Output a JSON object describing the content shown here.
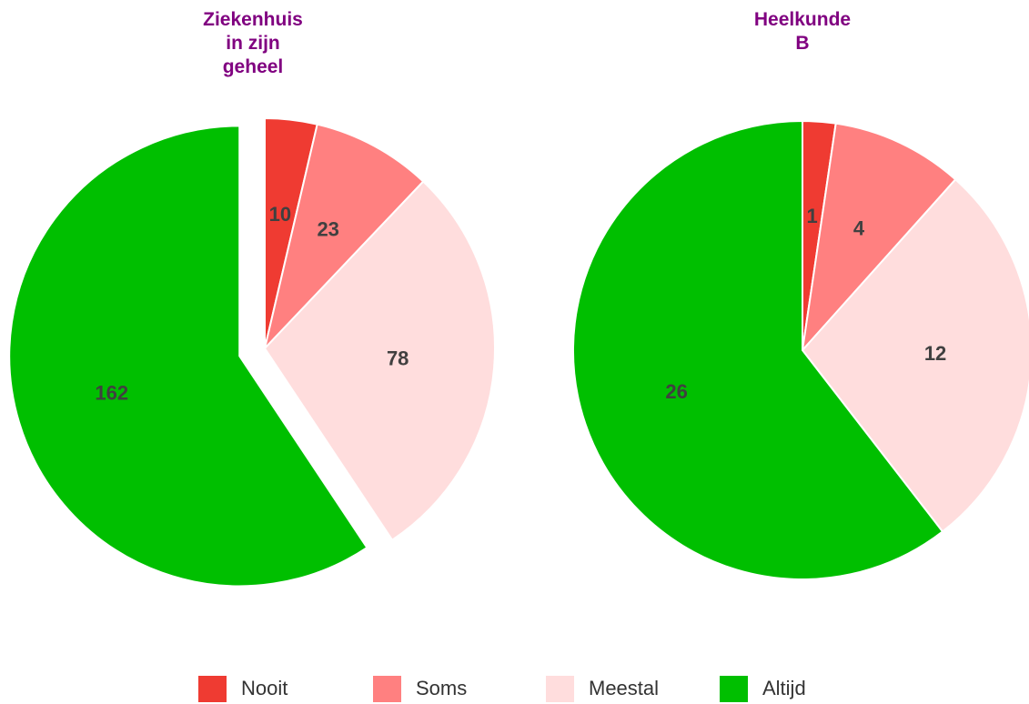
{
  "chart_data": [
    {
      "type": "pie",
      "title": "Ziekenhuis\nin zijn\ngeheel",
      "values": [
        10,
        23,
        78,
        162
      ],
      "explode": [
        false,
        false,
        false,
        true
      ]
    },
    {
      "type": "pie",
      "title": "Heelkunde\nB",
      "values": [
        1,
        4,
        12,
        26
      ],
      "explode": [
        false,
        false,
        false,
        false
      ]
    }
  ],
  "legend": {
    "labels": [
      "Nooit",
      "Soms",
      "Meestal",
      "Altijd"
    ],
    "colors": [
      "#ef3b32",
      "#ff8080",
      "#ffdddd",
      "#00bf00"
    ]
  }
}
